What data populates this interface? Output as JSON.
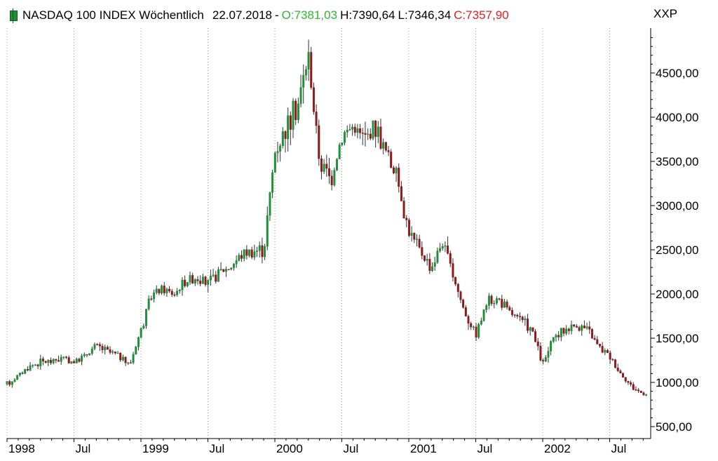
{
  "header": {
    "title": "NASDAQ 100 INDEX Wöchentlich",
    "date": "22.07.2018",
    "separator": "-",
    "open": "O:7381,03",
    "high": "H:7390,64",
    "low": "L:7346,34",
    "close": "C:7357,90",
    "code": "XXP",
    "colors": {
      "open": "#2eb82e",
      "close": "#e02020",
      "up": "#1f8f3a",
      "down": "#8b1a1a"
    }
  },
  "chart_data": {
    "type": "candlestick",
    "frequency": "weekly",
    "xlabel": "",
    "ylabel": "",
    "ylim": [
      400,
      4900
    ],
    "y_ticks": [
      "500,00",
      "1000,00",
      "1500,00",
      "2000,00",
      "2500,00",
      "3000,00",
      "3500,00",
      "4000,00",
      "4500,00"
    ],
    "y_tick_values": [
      500,
      1000,
      1500,
      2000,
      2500,
      3000,
      3500,
      4000,
      4500
    ],
    "x_ticks": [
      "1998",
      "Jul",
      "1999",
      "Jul",
      "2000",
      "Jul",
      "2001",
      "Jul",
      "2002",
      "Jul"
    ],
    "x_tick_dates": [
      "1998-01",
      "1998-07",
      "1999-01",
      "1999-07",
      "2000-01",
      "2000-07",
      "2001-01",
      "2001-07",
      "2002-01",
      "2002-07"
    ],
    "x_range": [
      "1998-01",
      "2002-10"
    ],
    "grid": "vertical dotted at tick dates",
    "legend": "none",
    "close_path": [
      [
        "1998-01",
        980
      ],
      [
        "1998-02",
        1080
      ],
      [
        "1998-03",
        1180
      ],
      [
        "1998-04",
        1230
      ],
      [
        "1998-05",
        1240
      ],
      [
        "1998-06",
        1280
      ],
      [
        "1998-07",
        1230
      ],
      [
        "1998-08",
        1300
      ],
      [
        "1998-09",
        1420
      ],
      [
        "1998-10",
        1350
      ],
      [
        "1998-11",
        1300
      ],
      [
        "1998-12",
        1200
      ],
      [
        "1999-01",
        1600
      ],
      [
        "1999-02",
        2000
      ],
      [
        "1999-03",
        2050
      ],
      [
        "1999-04",
        2000
      ],
      [
        "1999-05",
        2150
      ],
      [
        "1999-06",
        2200
      ],
      [
        "1999-07",
        2100
      ],
      [
        "1999-08",
        2250
      ],
      [
        "1999-09",
        2300
      ],
      [
        "1999-10",
        2450
      ],
      [
        "1999-11",
        2500
      ],
      [
        "1999-12",
        2500
      ],
      [
        "2000-01",
        3600
      ],
      [
        "2000-02",
        3900
      ],
      [
        "2000-03",
        4100
      ],
      [
        "2000-04",
        4700
      ],
      [
        "2000-05",
        3500
      ],
      [
        "2000-06",
        3300
      ],
      [
        "2000-07",
        3800
      ],
      [
        "2000-08",
        3900
      ],
      [
        "2000-09",
        3750
      ],
      [
        "2000-10",
        3900
      ],
      [
        "2000-11",
        3600
      ],
      [
        "2000-12",
        3300
      ],
      [
        "2001-01",
        2700
      ],
      [
        "2001-02",
        2500
      ],
      [
        "2001-03",
        2300
      ],
      [
        "2001-04",
        2600
      ],
      [
        "2001-05",
        2200
      ],
      [
        "2001-06",
        1800
      ],
      [
        "2001-07",
        1550
      ],
      [
        "2001-08",
        1900
      ],
      [
        "2001-09",
        1950
      ],
      [
        "2001-10",
        1800
      ],
      [
        "2001-11",
        1700
      ],
      [
        "2001-12",
        1600
      ],
      [
        "2002-01",
        1200
      ],
      [
        "2002-02",
        1500
      ],
      [
        "2002-03",
        1600
      ],
      [
        "2002-04",
        1650
      ],
      [
        "2002-05",
        1600
      ],
      [
        "2002-06",
        1400
      ],
      [
        "2002-07",
        1300
      ],
      [
        "2002-08",
        1100
      ],
      [
        "2002-09",
        950
      ],
      [
        "2002-10",
        870
      ]
    ]
  }
}
